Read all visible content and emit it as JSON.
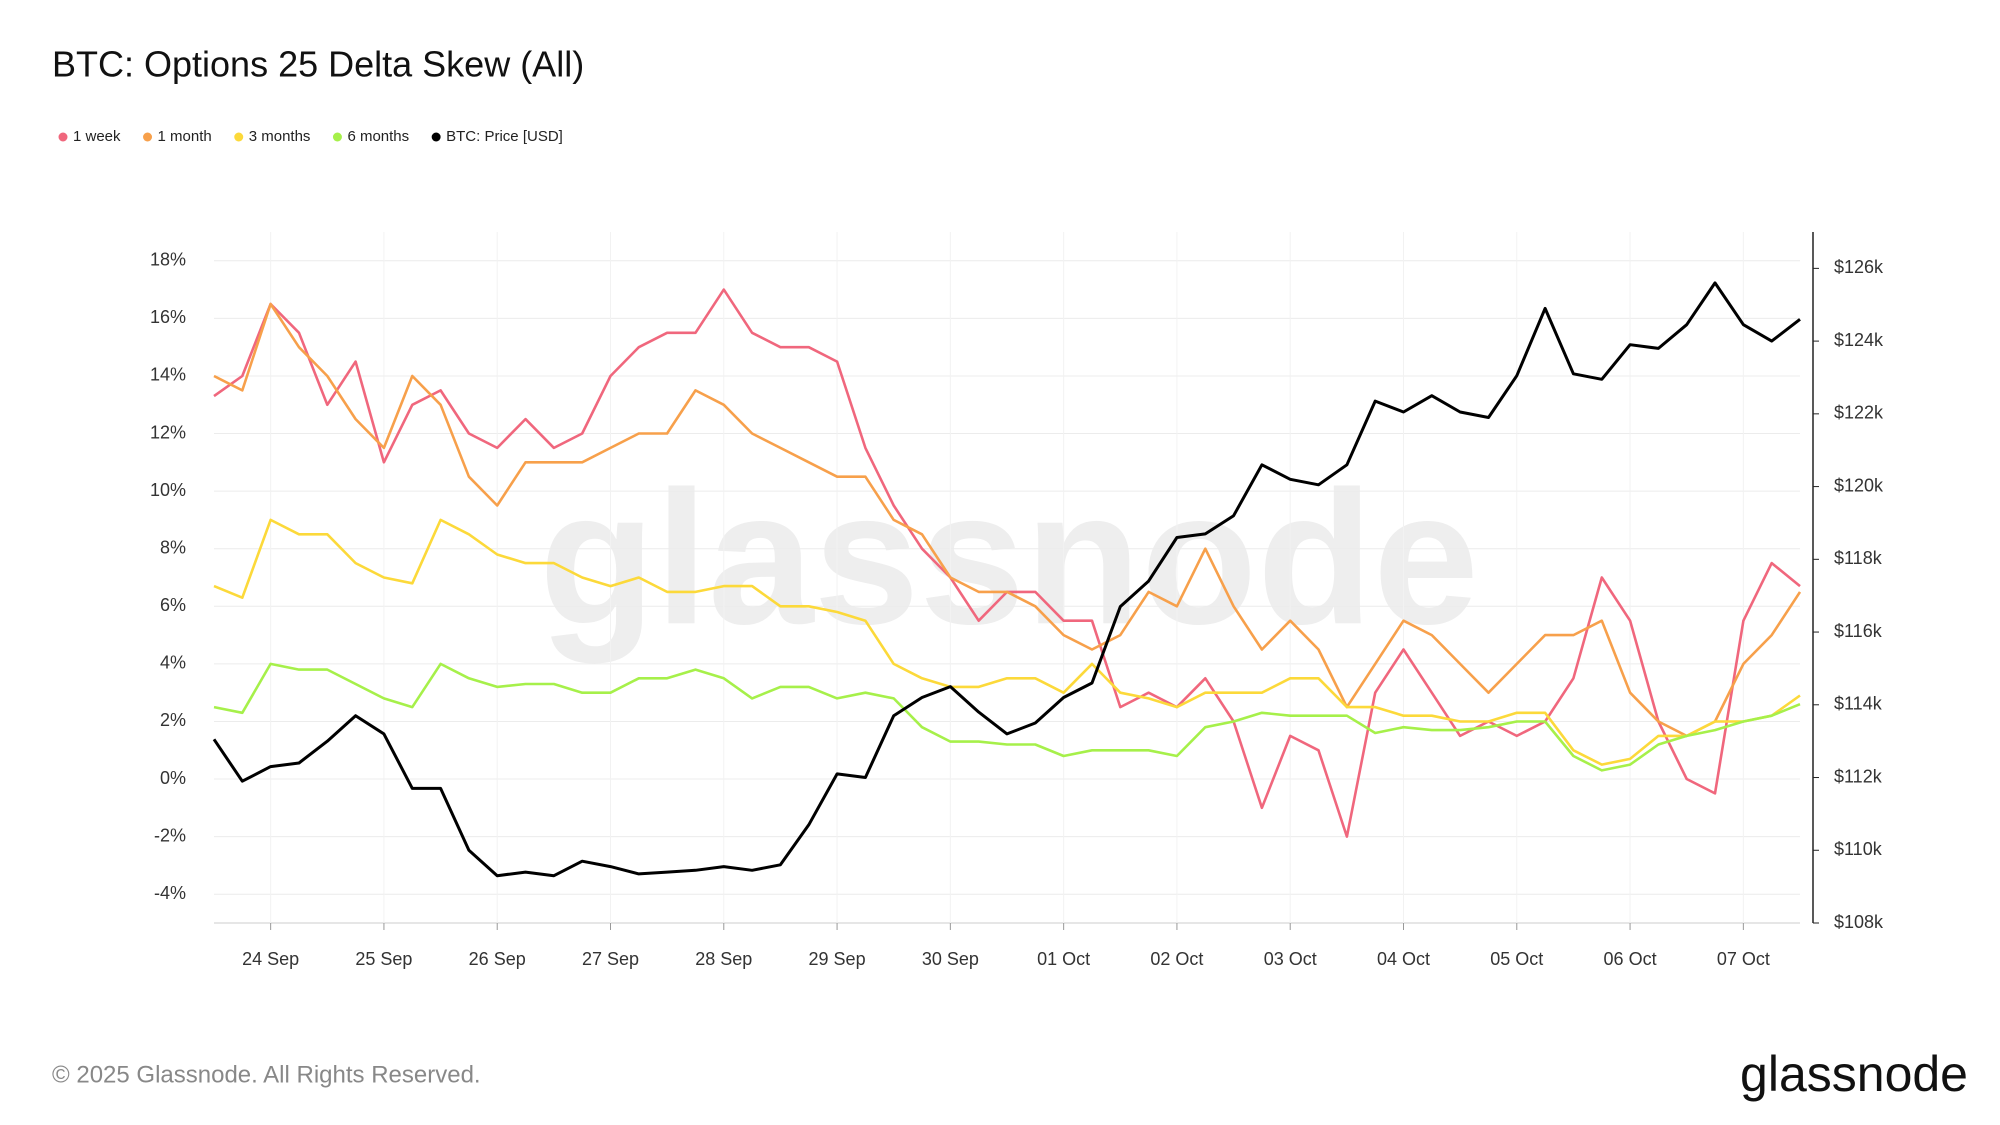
{
  "chart_data": {
    "type": "line",
    "title": "BTC: Options 25 Delta Skew (All)",
    "watermark": "glassnode",
    "logo": "glassnode",
    "footer": "© 2025 Glassnode. All Rights Reserved.",
    "categories": [
      null,
      null,
      "24 Sep",
      null,
      null,
      null,
      "25 Sep",
      null,
      null,
      null,
      "26 Sep",
      null,
      null,
      null,
      "27 Sep",
      null,
      null,
      null,
      "28 Sep",
      null,
      null,
      null,
      "29 Sep",
      null,
      null,
      null,
      "30 Sep",
      null,
      null,
      null,
      "01 Oct",
      null,
      null,
      null,
      "02 Oct",
      null,
      null,
      null,
      "03 Oct",
      null,
      null,
      null,
      "04 Oct",
      null,
      null,
      null,
      "05 Oct",
      null,
      null,
      null,
      "06 Oct",
      null,
      null,
      null,
      "07 Oct",
      null,
      null
    ],
    "series": [
      {
        "name": "1 week",
        "color": "#f0677d",
        "values": [
          13.3,
          14,
          16.5,
          15.5,
          13,
          14.5,
          11,
          13,
          13.5,
          12,
          11.5,
          12.5,
          11.5,
          12,
          14,
          15,
          15.5,
          15.5,
          17,
          15.5,
          15,
          15,
          14.5,
          11.5,
          9.5,
          8,
          7,
          5.5,
          6.5,
          6.5,
          5.5,
          5.5,
          2.5,
          3,
          2.5,
          3.5,
          2,
          -1,
          1.5,
          1,
          -2,
          3,
          4.5,
          3,
          1.5,
          2,
          1.5,
          2,
          3.5,
          7,
          5.5,
          2,
          0,
          -0.5,
          5.5,
          7.5,
          6.7
        ]
      },
      {
        "name": "1 month",
        "color": "#f7a04b",
        "values": [
          14,
          13.5,
          16.5,
          15,
          14,
          12.5,
          11.5,
          14,
          13,
          10.5,
          9.5,
          11,
          11,
          11,
          11.5,
          12,
          12,
          13.5,
          13,
          12,
          11.5,
          11,
          10.5,
          10.5,
          9,
          8.5,
          7,
          6.5,
          6.5,
          6,
          5,
          4.5,
          5,
          6.5,
          6,
          8,
          6,
          4.5,
          5.5,
          4.5,
          2.5,
          4,
          5.5,
          5,
          4,
          3,
          4,
          5,
          5,
          5.5,
          3,
          2,
          1.5,
          2,
          4,
          5,
          6.5
        ]
      },
      {
        "name": "3 months",
        "color": "#fcd93a",
        "values": [
          6.7,
          6.3,
          9,
          8.5,
          8.5,
          7.5,
          7,
          6.8,
          9,
          8.5,
          7.8,
          7.5,
          7.5,
          7,
          6.7,
          7,
          6.5,
          6.5,
          6.7,
          6.7,
          6,
          6,
          5.8,
          5.5,
          4,
          3.5,
          3.2,
          3.2,
          3.5,
          3.5,
          3,
          4,
          3,
          2.8,
          2.5,
          3,
          3,
          3,
          3.5,
          3.5,
          2.5,
          2.5,
          2.2,
          2.2,
          2,
          2,
          2.3,
          2.3,
          1,
          0.5,
          0.7,
          1.5,
          1.5,
          2,
          2,
          2.2,
          2.9
        ]
      },
      {
        "name": "6 months",
        "color": "#a6f04a",
        "values": [
          2.5,
          2.3,
          4,
          3.8,
          3.8,
          3.3,
          2.8,
          2.5,
          4,
          3.5,
          3.2,
          3.3,
          3.3,
          3,
          3,
          3.5,
          3.5,
          3.8,
          3.5,
          2.8,
          3.2,
          3.2,
          2.8,
          3,
          2.8,
          1.8,
          1.3,
          1.3,
          1.2,
          1.2,
          0.8,
          1,
          1,
          1,
          0.8,
          1.8,
          2,
          2.3,
          2.2,
          2.2,
          2.2,
          1.6,
          1.8,
          1.7,
          1.7,
          1.8,
          2,
          2,
          0.8,
          0.3,
          0.5,
          1.2,
          1.5,
          1.7,
          2,
          2.2,
          2.6
        ]
      },
      {
        "name": "BTC: Price [USD]",
        "color": "#000000",
        "axis": "y2",
        "values": [
          113050,
          111900,
          112300,
          112400,
          113000,
          113700,
          113200,
          111700,
          111700,
          110000,
          109300,
          109400,
          109300,
          109700,
          109550,
          109350,
          109400,
          109450,
          109550,
          109450,
          109600,
          110700,
          112100,
          112000,
          113700,
          114200,
          114500,
          113800,
          113200,
          113500,
          114200,
          114600,
          116700,
          117400,
          118600,
          118700,
          119200,
          120600,
          120200,
          120050,
          120600,
          122350,
          122050,
          122500,
          122050,
          121900,
          123050,
          124900,
          123100,
          122950,
          123900,
          123800,
          124450,
          125600,
          124450,
          124000,
          124600
        ]
      }
    ],
    "ylim": [
      -5,
      19
    ],
    "yticks": [
      {
        "value": -4,
        "label": "-4%"
      },
      {
        "value": -2,
        "label": "-2%"
      },
      {
        "value": 0,
        "label": "0%"
      },
      {
        "value": 2,
        "label": "2%"
      },
      {
        "value": 4,
        "label": "4%"
      },
      {
        "value": 6,
        "label": "6%"
      },
      {
        "value": 8,
        "label": "8%"
      },
      {
        "value": 10,
        "label": "10%"
      },
      {
        "value": 12,
        "label": "12%"
      },
      {
        "value": 14,
        "label": "14%"
      },
      {
        "value": 16,
        "label": "16%"
      },
      {
        "value": 18,
        "label": "18%"
      }
    ],
    "y2lim": [
      108000,
      127000
    ],
    "y2ticks": [
      {
        "value": 108000,
        "label": "$108k"
      },
      {
        "value": 110000,
        "label": "$110k"
      },
      {
        "value": 112000,
        "label": "$112k"
      },
      {
        "value": 114000,
        "label": "$114k"
      },
      {
        "value": 116000,
        "label": "$116k"
      },
      {
        "value": 118000,
        "label": "$118k"
      },
      {
        "value": 120000,
        "label": "$120k"
      },
      {
        "value": 122000,
        "label": "$122k"
      },
      {
        "value": 124000,
        "label": "$124k"
      },
      {
        "value": 126000,
        "label": "$126k"
      }
    ],
    "grid": true
  }
}
